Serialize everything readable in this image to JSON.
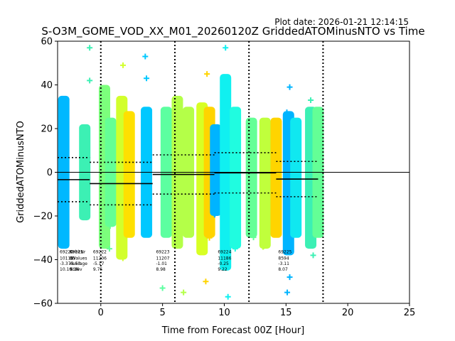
{
  "plot_date": "Plot date: 2026-01-21 12:14:15",
  "chart_data": {
    "type": "scatter",
    "title": "S-O3M_GOME_VOD_XX_M01_20260120Z GriddedATOMinusNTO vs Time",
    "xlabel": "Time from Forecast 00Z [Hour]",
    "ylabel": "GriddedATOMinusNTO",
    "xlim": [
      -3.5,
      25
    ],
    "ylim": [
      -60,
      60
    ],
    "xticks": [
      0,
      5,
      10,
      15,
      20,
      25
    ],
    "yticks": [
      -60,
      -40,
      -20,
      0,
      20,
      40,
      60
    ],
    "zero_line": 0,
    "vlines": [
      0,
      6,
      12,
      18
    ],
    "strips": [
      {
        "x": -3.0,
        "lo": -35,
        "hi": 35,
        "color": "#00b8ff"
      },
      {
        "x": -1.3,
        "lo": -22,
        "hi": 22,
        "color": "#3cf0b4"
      },
      {
        "x": 0.3,
        "lo": -35,
        "hi": 40,
        "color": "#7cff7c"
      },
      {
        "x": 0.8,
        "lo": -25,
        "hi": 25,
        "color": "#64ff96"
      },
      {
        "x": 1.7,
        "lo": -40,
        "hi": 35,
        "color": "#d2ff2c"
      },
      {
        "x": 2.3,
        "lo": -30,
        "hi": 28,
        "color": "#ffe000"
      },
      {
        "x": 3.7,
        "lo": -30,
        "hi": 30,
        "color": "#00c8ff"
      },
      {
        "x": 5.3,
        "lo": -30,
        "hi": 30,
        "color": "#5cffa0"
      },
      {
        "x": 6.2,
        "lo": -35,
        "hi": 35,
        "color": "#b4ff48"
      },
      {
        "x": 7.1,
        "lo": -30,
        "hi": 30,
        "color": "#b4ff48"
      },
      {
        "x": 8.2,
        "lo": -38,
        "hi": 32,
        "color": "#d8ff24"
      },
      {
        "x": 8.8,
        "lo": -30,
        "hi": 30,
        "color": "#ffd400"
      },
      {
        "x": 9.3,
        "lo": -20,
        "hi": 22,
        "color": "#00b4ff"
      },
      {
        "x": 10.1,
        "lo": -45,
        "hi": 45,
        "color": "#10f0f0"
      },
      {
        "x": 10.9,
        "lo": -35,
        "hi": 30,
        "color": "#20fce0"
      },
      {
        "x": 12.2,
        "lo": -30,
        "hi": 25,
        "color": "#64ff96"
      },
      {
        "x": 13.3,
        "lo": -35,
        "hi": 25,
        "color": "#c0ff3c"
      },
      {
        "x": 14.2,
        "lo": -30,
        "hi": 25,
        "color": "#ffd400"
      },
      {
        "x": 15.2,
        "lo": -38,
        "hi": 28,
        "color": "#00b4ff"
      },
      {
        "x": 15.8,
        "lo": -30,
        "hi": 25,
        "color": "#10e8f0"
      },
      {
        "x": 17.0,
        "lo": -35,
        "hi": 30,
        "color": "#3cf0b4"
      },
      {
        "x": 17.6,
        "lo": -30,
        "hi": 30,
        "color": "#64ff96"
      }
    ],
    "outliers": [
      {
        "x": -0.9,
        "y": 57,
        "color": "#3cf0b4"
      },
      {
        "x": -3.1,
        "y": 28,
        "color": "#00b8ff"
      },
      {
        "x": -0.9,
        "y": 42,
        "color": "#3cf0b4"
      },
      {
        "x": 0.1,
        "y": 38,
        "color": "#7cff7c"
      },
      {
        "x": 1.8,
        "y": 49,
        "color": "#d2ff2c"
      },
      {
        "x": 3.6,
        "y": 53,
        "color": "#00c8ff"
      },
      {
        "x": 3.7,
        "y": 43,
        "color": "#00c8ff"
      },
      {
        "x": 8.6,
        "y": 45,
        "color": "#ffd400"
      },
      {
        "x": 10.1,
        "y": 57,
        "color": "#10f0f0"
      },
      {
        "x": 10.3,
        "y": 42,
        "color": "#10f0f0"
      },
      {
        "x": 15.3,
        "y": 39,
        "color": "#00b4ff"
      },
      {
        "x": 17.0,
        "y": 33,
        "color": "#3cf0b4"
      },
      {
        "x": 0.7,
        "y": -35,
        "color": "#64ff96"
      },
      {
        "x": 5.0,
        "y": -53,
        "color": "#5cffa0"
      },
      {
        "x": 6.7,
        "y": -55,
        "color": "#b4ff48"
      },
      {
        "x": 8.5,
        "y": -50,
        "color": "#ffd400"
      },
      {
        "x": 10.3,
        "y": -57,
        "color": "#10f0f0"
      },
      {
        "x": 15.1,
        "y": -55,
        "color": "#00b4ff"
      },
      {
        "x": 15.3,
        "y": -48,
        "color": "#00b4ff"
      },
      {
        "x": 17.2,
        "y": -38,
        "color": "#3cf0b4"
      }
    ],
    "groups": [
      {
        "x0": -3.5,
        "x1": -0.9,
        "mean": -3.37,
        "sd": 10.1
      },
      {
        "x0": -0.9,
        "x1": 4.2,
        "mean": -5.17,
        "sd": 9.75
      },
      {
        "x0": 4.2,
        "x1": 9.2,
        "mean": -1.01,
        "sd": 8.98
      },
      {
        "x0": 9.2,
        "x1": 14.2,
        "mean": -0.25,
        "sd": 9.22
      },
      {
        "x0": 14.2,
        "x1": 17.6,
        "mean": -3.11,
        "sd": 8.07
      }
    ],
    "header_labels": [
      "OrbitNr",
      "NValues",
      "Average",
      "Stdev"
    ],
    "annotations": [
      {
        "x": -3.5,
        "lines": [
          "69220",
          "10112",
          "-3.37",
          "10.10"
        ]
      },
      {
        "x": -2.7,
        "lines": [
          "69221",
          "00",
          "-3.53",
          "9.36"
        ]
      },
      {
        "x": -0.8,
        "lines": [
          "69222",
          "11206",
          "-5.17",
          "9.75"
        ]
      },
      {
        "x": 4.3,
        "lines": [
          "69223",
          "11207",
          "-1.01",
          "8.98"
        ]
      },
      {
        "x": 9.3,
        "lines": [
          "69224",
          "11186",
          "-0.25",
          "9.22"
        ]
      },
      {
        "x": 14.2,
        "lines": [
          "69225",
          "8594",
          "-3.11",
          "8.07"
        ]
      }
    ]
  }
}
